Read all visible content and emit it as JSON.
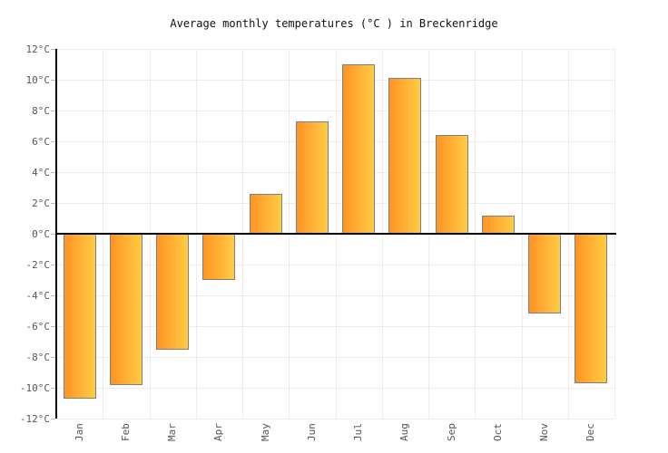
{
  "chart_data": {
    "type": "bar",
    "title": "Average monthly temperatures (°C ) in Breckenridge",
    "categories": [
      "Jan",
      "Feb",
      "Mar",
      "Apr",
      "May",
      "Jun",
      "Jul",
      "Aug",
      "Sep",
      "Oct",
      "Nov",
      "Dec"
    ],
    "values": [
      -10.7,
      -9.8,
      -7.5,
      -3.0,
      2.6,
      7.3,
      11.0,
      10.1,
      6.4,
      1.2,
      -5.2,
      -9.7
    ],
    "unit": "°C",
    "xlabel": "",
    "ylabel": "",
    "ylim": [
      -12,
      12
    ],
    "ytick_step": 2,
    "ytick_labels": [
      "12°C",
      "10°C",
      "8°C",
      "6°C",
      "4°C",
      "2°C",
      "0°C",
      "-2°C",
      "-4°C",
      "-6°C",
      "-8°C",
      "-10°C",
      "-12°C"
    ],
    "grid": true,
    "legend": "none",
    "colors": {
      "background": "#FFFFFF",
      "bar_gradient_left": "#FF9425",
      "bar_gradient_right": "#FFCC44",
      "bar_border": "#7F7F7F",
      "axis": "#000000",
      "zero_line": "#000000",
      "gridline": "#ECECEC",
      "tick": "#B8B8B8",
      "label": "#555555",
      "title": "#111111"
    }
  }
}
